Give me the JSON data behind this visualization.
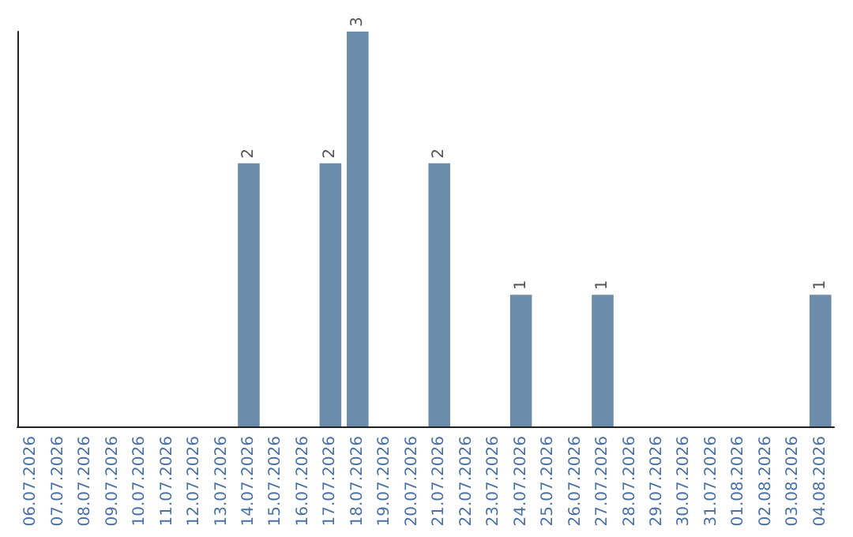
{
  "chart_data": {
    "type": "bar",
    "categories": [
      "06.07.2026",
      "07.07.2026",
      "08.07.2026",
      "09.07.2026",
      "10.07.2026",
      "11.07.2026",
      "12.07.2026",
      "13.07.2026",
      "14.07.2026",
      "15.07.2026",
      "16.07.2026",
      "17.07.2026",
      "18.07.2026",
      "19.07.2026",
      "20.07.2026",
      "21.07.2026",
      "22.07.2026",
      "23.07.2026",
      "24.07.2026",
      "25.07.2026",
      "26.07.2026",
      "27.07.2026",
      "28.07.2026",
      "29.07.2026",
      "30.07.2026",
      "31.07.2026",
      "01.08.2026",
      "02.08.2026",
      "03.08.2026",
      "04.08.2026"
    ],
    "values": [
      0,
      0,
      0,
      0,
      0,
      0,
      0,
      0,
      2,
      0,
      0,
      2,
      3,
      0,
      0,
      2,
      0,
      0,
      1,
      0,
      0,
      1,
      0,
      0,
      0,
      0,
      0,
      0,
      0,
      1
    ],
    "value_labels": [
      null,
      null,
      null,
      null,
      null,
      null,
      null,
      null,
      "2",
      null,
      null,
      "2",
      "3",
      null,
      null,
      "2",
      null,
      null,
      "1",
      null,
      null,
      "1",
      null,
      null,
      null,
      null,
      null,
      null,
      null,
      "1"
    ],
    "color": "#6b8cab",
    "ylim": [
      0,
      3
    ],
    "tick_labels": "x",
    "grid": false
  }
}
